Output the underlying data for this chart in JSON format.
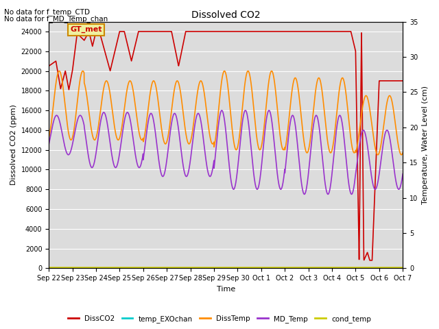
{
  "title": "Dissolved CO2",
  "annotations": [
    "No data for f_temp_CTD",
    "No data for f_MD_Temp_chan"
  ],
  "legend_box_label": "GT_met",
  "ylabel_left": "Dissolved CO2 (ppm)",
  "ylabel_right": "Temperature, Water Level (cm)",
  "xlabel": "Time",
  "ylim_left": [
    0,
    25000
  ],
  "ylim_right": [
    0,
    35
  ],
  "background_color": "#dcdcdc",
  "figure_bg": "#ffffff",
  "grid_color": "#ffffff",
  "series": {
    "DissCO2": {
      "color": "#cc0000",
      "lw": 1.2
    },
    "temp_EXOchan": {
      "color": "#00cccc",
      "lw": 1.2
    },
    "DissTemp": {
      "color": "#ff8c00",
      "lw": 1.2
    },
    "MD_Temp": {
      "color": "#9933cc",
      "lw": 1.2
    },
    "cond_temp": {
      "color": "#cccc00",
      "lw": 1.2
    }
  },
  "xtick_labels": [
    "Sep 22",
    "Sep 23",
    "Sep 24",
    "Sep 25",
    "Sep 26",
    "Sep 27",
    "Sep 28",
    "Sep 29",
    "Sep 30",
    "Oct 1",
    "Oct 2",
    "Oct 3",
    "Oct 4",
    "Oct 5",
    "Oct 6",
    "Oct 7"
  ],
  "n_days": 15
}
